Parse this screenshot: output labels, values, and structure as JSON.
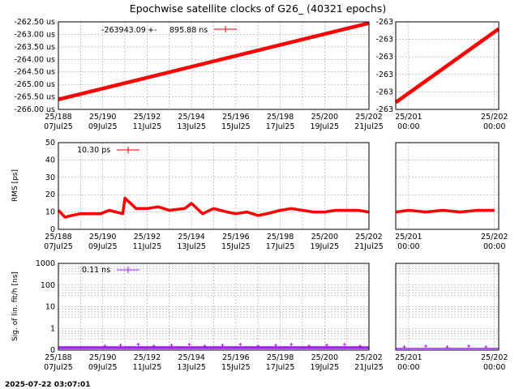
{
  "title": "Epochwise satellite clocks of G26_ (40321 epochs)",
  "timestamp": "2025-07-22 03:07:01",
  "colors": {
    "series_clock": "#ff0000",
    "series_rms": "#ff0000",
    "series_sig": "#a020f0"
  },
  "chart_data": [
    {
      "name": "clock-main",
      "type": "line",
      "ylabel": "",
      "legend": {
        "value": "-263943.09",
        "sep": "+-",
        "sigma": "895.88 ns",
        "placement": "top-left"
      },
      "ylim": [
        -266.0,
        -262.5
      ],
      "yticks": [
        "-262.50 us",
        "-263.00 us",
        "-263.50 us",
        "-264.00 us",
        "-264.50 us",
        "-265.00 us",
        "-265.50 us",
        "-266.00 us"
      ],
      "xrange_days": [
        188,
        202
      ],
      "xticks": [
        {
          "top": "25/188",
          "bottom": "07Jul25"
        },
        {
          "top": "25/190",
          "bottom": "09Jul25"
        },
        {
          "top": "25/192",
          "bottom": "11Jul25"
        },
        {
          "top": "25/194",
          "bottom": "13Jul25"
        },
        {
          "top": "25/196",
          "bottom": "15Jul25"
        },
        {
          "top": "25/198",
          "bottom": "17Jul25"
        },
        {
          "top": "25/200",
          "bottom": "19Jul25"
        },
        {
          "top": "25/202",
          "bottom": "21Jul25"
        }
      ],
      "x": [
        188,
        202
      ],
      "y": [
        -265.6,
        -262.55
      ],
      "grid": true
    },
    {
      "name": "clock-zoom",
      "type": "line",
      "yticks": [
        "-263",
        "-263",
        "-263",
        "-263",
        "-263",
        "-263"
      ],
      "xticks": [
        {
          "top": "25/201",
          "bottom": "00:00"
        },
        {
          "top": "25/202",
          "bottom": "00:00"
        }
      ],
      "xrange_days": [
        200.85,
        202.05
      ],
      "yrange": [
        0,
        1
      ],
      "x": [
        200.85,
        202.05
      ],
      "y": [
        0.08,
        0.92
      ],
      "grid": true
    },
    {
      "name": "rms-main",
      "type": "line",
      "ylabel": "RMS [ps]",
      "legend": {
        "value": "10.30 ps",
        "placement": "top-left"
      },
      "ylim": [
        0,
        50
      ],
      "yticks": [
        "50",
        "40",
        "30",
        "20",
        "10",
        "0"
      ],
      "xrange_days": [
        188,
        202
      ],
      "xticks": [
        {
          "top": "25/188",
          "bottom": "07Jul25"
        },
        {
          "top": "25/190",
          "bottom": "09Jul25"
        },
        {
          "top": "25/192",
          "bottom": "11Jul25"
        },
        {
          "top": "25/194",
          "bottom": "13Jul25"
        },
        {
          "top": "25/196",
          "bottom": "15Jul25"
        },
        {
          "top": "25/198",
          "bottom": "17Jul25"
        },
        {
          "top": "25/200",
          "bottom": "19Jul25"
        },
        {
          "top": "25/202",
          "bottom": "21Jul25"
        }
      ],
      "x": [
        188,
        188.3,
        188.6,
        189.0,
        189.5,
        189.9,
        190.3,
        190.9,
        191.0,
        191.5,
        192.0,
        192.5,
        193.0,
        193.7,
        194.0,
        194.5,
        195.0,
        195.6,
        196.0,
        196.5,
        197.0,
        197.4,
        198.0,
        198.5,
        199.0,
        199.5,
        200.0,
        200.5,
        201.0,
        201.5,
        202.0
      ],
      "y": [
        11,
        7,
        8,
        9,
        9,
        9,
        11,
        9,
        18,
        12,
        12,
        13,
        11,
        12,
        15,
        9,
        12,
        10,
        9,
        10,
        8,
        9,
        11,
        12,
        11,
        10,
        10,
        11,
        11,
        11,
        10
      ],
      "grid": true
    },
    {
      "name": "rms-zoom",
      "type": "line",
      "ylim": [
        0,
        50
      ],
      "xticks": [
        {
          "top": "25/201",
          "bottom": "00:00"
        },
        {
          "top": "25/202",
          "bottom": "00:00"
        }
      ],
      "xrange_days": [
        200.85,
        202.05
      ],
      "x": [
        200.85,
        201.0,
        201.2,
        201.4,
        201.6,
        201.8,
        202.0
      ],
      "y": [
        10,
        11,
        10,
        11,
        10,
        11,
        11
      ],
      "grid": true
    },
    {
      "name": "sig-main",
      "type": "scatter",
      "ylabel": "Sig. of lin. fit/h [ns]",
      "legend": {
        "value": "0.11 ns",
        "placement": "top-left"
      },
      "yscale": "log",
      "ylim": [
        0,
        1000
      ],
      "yticks": [
        "1000",
        "100",
        "10",
        "1",
        "0"
      ],
      "xrange_days": [
        188,
        202
      ],
      "xticks": [
        {
          "top": "25/188",
          "bottom": "07Jul25"
        },
        {
          "top": "25/190",
          "bottom": "09Jul25"
        },
        {
          "top": "25/192",
          "bottom": "11Jul25"
        },
        {
          "top": "25/194",
          "bottom": "13Jul25"
        },
        {
          "top": "25/196",
          "bottom": "15Jul25"
        },
        {
          "top": "25/198",
          "bottom": "17Jul25"
        },
        {
          "top": "25/200",
          "bottom": "19Jul25"
        },
        {
          "top": "25/202",
          "bottom": "21Jul25"
        }
      ],
      "grid": true
    },
    {
      "name": "sig-zoom",
      "type": "scatter",
      "yscale": "log",
      "xticks": [
        {
          "top": "25/201",
          "bottom": "00:00"
        },
        {
          "top": "25/202",
          "bottom": "00:00"
        }
      ],
      "xrange_days": [
        200.85,
        202.05
      ],
      "grid": true
    }
  ]
}
